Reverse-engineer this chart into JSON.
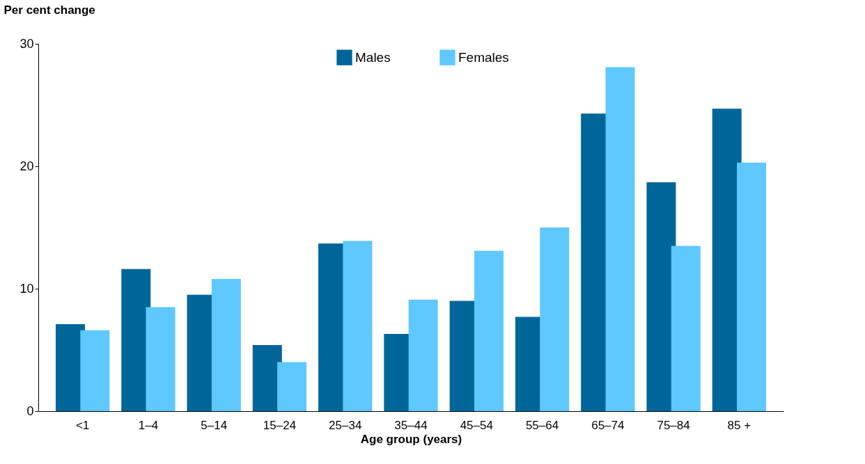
{
  "chart_data": {
    "type": "bar",
    "ylabel": "Per cent change",
    "xlabel": "Age group (years)",
    "categories": [
      "<1",
      "1–4",
      "5–14",
      "15–24",
      "25–34",
      "35–44",
      "45–54",
      "55–64",
      "65–74",
      "75–84",
      "85 +"
    ],
    "series": [
      {
        "name": "Males",
        "color": "#006699",
        "values": [
          7.1,
          11.6,
          9.5,
          5.4,
          13.7,
          6.3,
          9.0,
          7.7,
          24.3,
          18.7,
          24.7
        ]
      },
      {
        "name": "Females",
        "color": "#5fc8ff",
        "values": [
          6.6,
          8.5,
          10.8,
          4.0,
          13.9,
          9.1,
          13.1,
          15.0,
          28.1,
          13.5,
          20.3
        ]
      }
    ],
    "ylim": [
      0,
      30
    ],
    "yticks": [
      0,
      10,
      20,
      30
    ],
    "grid": false,
    "legend": "top"
  }
}
